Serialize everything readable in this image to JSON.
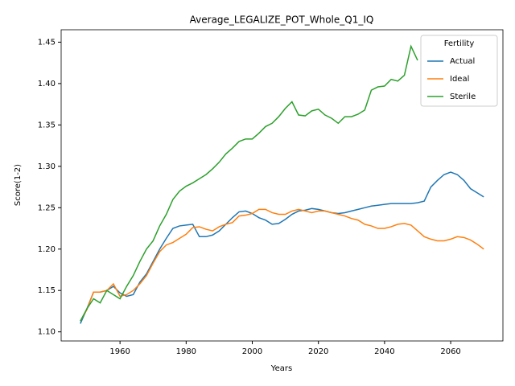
{
  "chart_data": {
    "type": "line",
    "title": "Average_LEGALIZE_POT_Whole_Q1_IQ",
    "xlabel": "Years",
    "ylabel": "Score(1-2)",
    "legend_title": "Fertility",
    "legend": "upper right",
    "x": [
      1948,
      1950,
      1952,
      1954,
      1956,
      1958,
      1960,
      1962,
      1964,
      1966,
      1968,
      1970,
      1972,
      1974,
      1976,
      1978,
      1980,
      1982,
      1984,
      1986,
      1988,
      1990,
      1992,
      1994,
      1996,
      1998,
      2000,
      2002,
      2004,
      2006,
      2008,
      2010,
      2012,
      2014,
      2016,
      2018,
      2020,
      2022,
      2024,
      2026,
      2028,
      2030,
      2032,
      2034,
      2036,
      2038,
      2040,
      2042,
      2044,
      2046,
      2048,
      2050,
      2052,
      2054,
      2056,
      2058,
      2060,
      2062,
      2064,
      2066,
      2068,
      2070
    ],
    "series": [
      {
        "name": "Actual",
        "color": "#1f77b4",
        "values": [
          1.11,
          1.128,
          1.148,
          1.148,
          1.15,
          1.155,
          1.147,
          1.143,
          1.145,
          1.16,
          1.17,
          1.185,
          1.2,
          1.213,
          1.225,
          1.228,
          1.229,
          1.23,
          1.215,
          1.215,
          1.217,
          1.222,
          1.23,
          1.238,
          1.245,
          1.246,
          1.243,
          1.238,
          1.235,
          1.23,
          1.231,
          1.236,
          1.242,
          1.246,
          1.247,
          1.249,
          1.248,
          1.246,
          1.244,
          1.243,
          1.244,
          1.246,
          1.248,
          1.25,
          1.252,
          1.253,
          1.254,
          1.255,
          1.255,
          1.255,
          1.255,
          1.256,
          1.258,
          1.275,
          1.283,
          1.29,
          1.293,
          1.29,
          1.283,
          1.273,
          1.268,
          1.263
        ]
      },
      {
        "name": "Ideal",
        "color": "#ff7f0e",
        "values": [
          1.113,
          1.127,
          1.148,
          1.148,
          1.15,
          1.158,
          1.143,
          1.145,
          1.15,
          1.158,
          1.168,
          1.183,
          1.197,
          1.205,
          1.208,
          1.213,
          1.218,
          1.226,
          1.227,
          1.224,
          1.222,
          1.227,
          1.23,
          1.232,
          1.24,
          1.241,
          1.243,
          1.248,
          1.248,
          1.244,
          1.242,
          1.242,
          1.246,
          1.248,
          1.246,
          1.244,
          1.246,
          1.246,
          1.244,
          1.242,
          1.24,
          1.237,
          1.235,
          1.23,
          1.228,
          1.225,
          1.225,
          1.227,
          1.23,
          1.231,
          1.229,
          1.222,
          1.215,
          1.212,
          1.21,
          1.21,
          1.212,
          1.215,
          1.214,
          1.211,
          1.206,
          1.2
        ]
      },
      {
        "name": "Sterile",
        "color": "#2ca02c",
        "values": [
          1.113,
          1.128,
          1.14,
          1.135,
          1.15,
          1.145,
          1.14,
          1.155,
          1.168,
          1.185,
          1.2,
          1.21,
          1.228,
          1.242,
          1.26,
          1.27,
          1.276,
          1.28,
          1.285,
          1.29,
          1.297,
          1.305,
          1.315,
          1.322,
          1.33,
          1.333,
          1.333,
          1.34,
          1.348,
          1.352,
          1.36,
          1.37,
          1.378,
          1.362,
          1.361,
          1.367,
          1.369,
          1.362,
          1.358,
          1.352,
          1.36,
          1.36,
          1.363,
          1.368,
          1.392,
          1.396,
          1.397,
          1.405,
          1.403,
          1.41,
          1.445,
          1.428,
          null,
          null,
          null,
          null,
          null,
          null,
          null,
          null,
          null,
          null
        ]
      }
    ],
    "xlim": [
      1942.2,
      2075.8
    ],
    "xticks": [
      1960,
      1980,
      2000,
      2020,
      2040,
      2060
    ],
    "ylim": [
      1.089,
      1.465
    ],
    "yticks": [
      {
        "value": 1.1,
        "label": "1.10"
      },
      1.15,
      {
        "value": 1.2,
        "label": "1.20"
      },
      1.25,
      {
        "value": 1.3,
        "label": "1.30"
      },
      1.35,
      {
        "value": 1.4,
        "label": "1.40"
      },
      1.45
    ],
    "grid": false
  }
}
